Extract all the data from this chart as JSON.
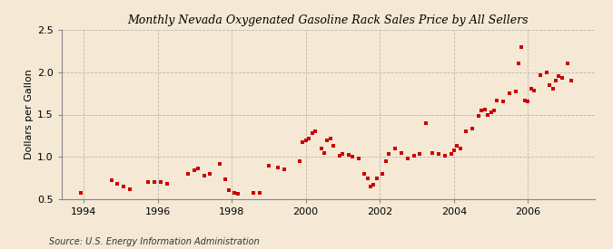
{
  "title": "Monthly Nevada Oxygenated Gasoline Rack Sales Price by All Sellers",
  "ylabel": "Dollars per Gallon",
  "source": "Source: U.S. Energy Information Administration",
  "background_color": "#f5e9d5",
  "dot_color": "#cc0000",
  "ylim": [
    0.5,
    2.5
  ],
  "yticks": [
    0.5,
    1.0,
    1.5,
    2.0,
    2.5
  ],
  "xticks": [
    1994,
    1996,
    1998,
    2000,
    2002,
    2004,
    2006
  ],
  "xlim": [
    1993.4,
    2007.8
  ],
  "data_points": [
    [
      1993.92,
      0.57
    ],
    [
      1994.75,
      0.72
    ],
    [
      1994.92,
      0.68
    ],
    [
      1995.08,
      0.65
    ],
    [
      1995.25,
      0.62
    ],
    [
      1995.75,
      0.7
    ],
    [
      1995.92,
      0.7
    ],
    [
      1996.08,
      0.7
    ],
    [
      1996.25,
      0.68
    ],
    [
      1996.83,
      0.8
    ],
    [
      1997.0,
      0.84
    ],
    [
      1997.08,
      0.86
    ],
    [
      1997.25,
      0.78
    ],
    [
      1997.42,
      0.8
    ],
    [
      1997.67,
      0.92
    ],
    [
      1997.83,
      0.73
    ],
    [
      1997.92,
      0.61
    ],
    [
      1998.08,
      0.58
    ],
    [
      1998.17,
      0.56
    ],
    [
      1998.58,
      0.58
    ],
    [
      1998.75,
      0.57
    ],
    [
      1999.0,
      0.9
    ],
    [
      1999.25,
      0.87
    ],
    [
      1999.42,
      0.85
    ],
    [
      1999.83,
      0.95
    ],
    [
      1999.92,
      1.17
    ],
    [
      2000.0,
      1.19
    ],
    [
      2000.08,
      1.22
    ],
    [
      2000.17,
      1.28
    ],
    [
      2000.25,
      1.3
    ],
    [
      2000.42,
      1.1
    ],
    [
      2000.5,
      1.05
    ],
    [
      2000.58,
      1.2
    ],
    [
      2000.67,
      1.22
    ],
    [
      2000.75,
      1.13
    ],
    [
      2000.92,
      1.01
    ],
    [
      2001.0,
      1.03
    ],
    [
      2001.17,
      1.02
    ],
    [
      2001.25,
      1.0
    ],
    [
      2001.42,
      0.98
    ],
    [
      2001.58,
      0.8
    ],
    [
      2001.67,
      0.75
    ],
    [
      2001.75,
      0.65
    ],
    [
      2001.83,
      0.67
    ],
    [
      2001.92,
      0.75
    ],
    [
      2002.08,
      0.8
    ],
    [
      2002.17,
      0.95
    ],
    [
      2002.25,
      1.03
    ],
    [
      2002.42,
      1.1
    ],
    [
      2002.58,
      1.05
    ],
    [
      2002.75,
      0.98
    ],
    [
      2002.92,
      1.01
    ],
    [
      2003.08,
      1.03
    ],
    [
      2003.25,
      1.4
    ],
    [
      2003.42,
      1.05
    ],
    [
      2003.58,
      1.03
    ],
    [
      2003.75,
      1.01
    ],
    [
      2003.92,
      1.04
    ],
    [
      2004.0,
      1.08
    ],
    [
      2004.08,
      1.13
    ],
    [
      2004.17,
      1.1
    ],
    [
      2004.33,
      1.3
    ],
    [
      2004.5,
      1.33
    ],
    [
      2004.67,
      1.48
    ],
    [
      2004.75,
      1.55
    ],
    [
      2004.83,
      1.56
    ],
    [
      2004.92,
      1.5
    ],
    [
      2005.0,
      1.53
    ],
    [
      2005.08,
      1.55
    ],
    [
      2005.17,
      1.67
    ],
    [
      2005.33,
      1.65
    ],
    [
      2005.5,
      1.75
    ],
    [
      2005.67,
      1.77
    ],
    [
      2005.75,
      2.1
    ],
    [
      2005.83,
      2.3
    ],
    [
      2005.92,
      1.67
    ],
    [
      2006.0,
      1.65
    ],
    [
      2006.08,
      1.8
    ],
    [
      2006.17,
      1.78
    ],
    [
      2006.33,
      1.97
    ],
    [
      2006.5,
      2.0
    ],
    [
      2006.58,
      1.85
    ],
    [
      2006.67,
      1.8
    ],
    [
      2006.75,
      1.9
    ],
    [
      2006.83,
      1.95
    ],
    [
      2006.92,
      1.93
    ],
    [
      2007.08,
      2.1
    ],
    [
      2007.17,
      1.9
    ]
  ]
}
